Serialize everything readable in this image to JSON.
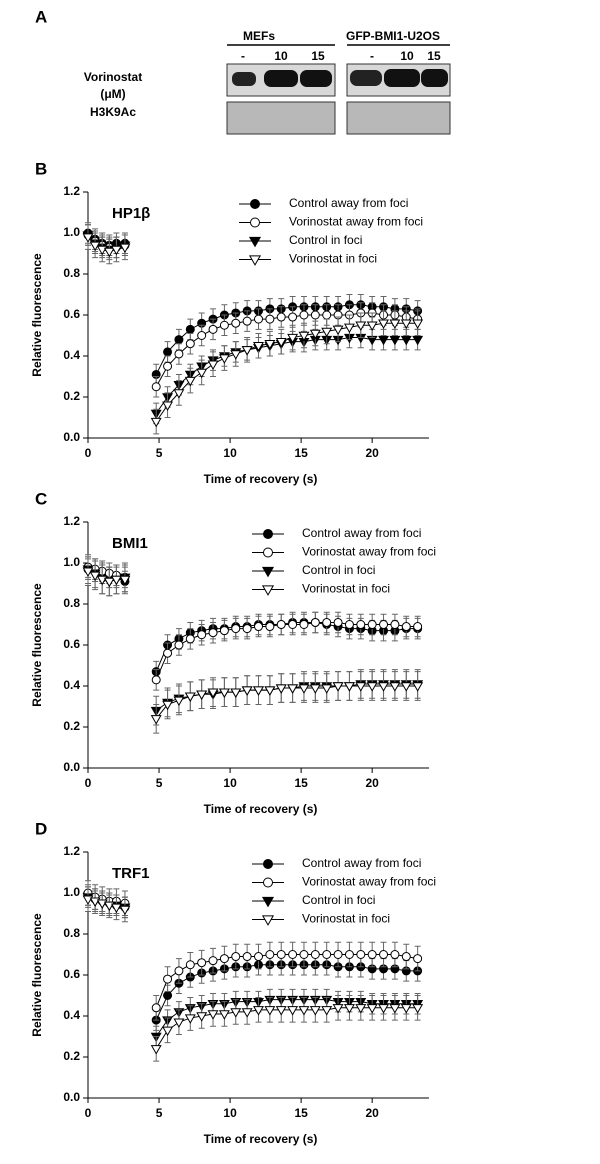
{
  "blot": {
    "panel_label": "A",
    "groups": [
      "MEFs",
      "GFP-BMI1-U2OS"
    ],
    "lanes": [
      "-",
      "10",
      "15",
      "-",
      "10",
      "15"
    ],
    "row_labels": [
      "Vorinostat",
      "(μM)",
      "H3K9Ac"
    ]
  },
  "chart_data": [
    {
      "type": "line",
      "panel_label": "B",
      "title": "HP1β",
      "xlabel": "Time of recovery (s)",
      "ylabel": "Relative fluorescence",
      "x": [
        0,
        0.5,
        1,
        1.5,
        2,
        2.6,
        4.8,
        5.6,
        6.4,
        7.2,
        8,
        8.8,
        9.6,
        10.4,
        11.2,
        12,
        12.8,
        13.6,
        14.4,
        15.2,
        16,
        16.8,
        17.6,
        18.4,
        19.2,
        20,
        20.8,
        21.6,
        22.4,
        23.2
      ],
      "xlim": [
        0,
        24
      ],
      "xticks": [
        0,
        5,
        10,
        15,
        20
      ],
      "ylim": [
        0,
        1.2
      ],
      "yticks": [
        {
          "value": 0,
          "label": "0.0"
        },
        0.2,
        0.4,
        0.6,
        0.8,
        {
          "value": 1,
          "label": "1.0"
        },
        1.2
      ],
      "series": [
        {
          "name": "Control away from foci",
          "color": "#000000",
          "marker": "circle",
          "filled": true,
          "error": 0.05,
          "values": [
            1.0,
            0.97,
            0.95,
            0.94,
            0.95,
            0.95,
            0.31,
            0.42,
            0.48,
            0.53,
            0.56,
            0.58,
            0.6,
            0.61,
            0.62,
            0.62,
            0.63,
            0.63,
            0.64,
            0.64,
            0.64,
            0.64,
            0.64,
            0.65,
            0.65,
            0.64,
            0.64,
            0.63,
            0.63,
            0.62
          ]
        },
        {
          "name": "Vorinostat away from foci",
          "color": "#000000",
          "marker": "circle",
          "filled": false,
          "error": 0.05,
          "values": [
            0.99,
            0.96,
            0.94,
            0.93,
            0.93,
            0.94,
            0.25,
            0.35,
            0.41,
            0.46,
            0.5,
            0.53,
            0.55,
            0.56,
            0.57,
            0.58,
            0.58,
            0.59,
            0.59,
            0.6,
            0.6,
            0.6,
            0.6,
            0.6,
            0.61,
            0.61,
            0.6,
            0.6,
            0.59,
            0.58
          ]
        },
        {
          "name": "Control in foci",
          "color": "#000000",
          "marker": "triangle",
          "filled": true,
          "error": 0.05,
          "values": [
            0.99,
            0.95,
            0.93,
            0.92,
            0.93,
            0.94,
            0.12,
            0.2,
            0.26,
            0.31,
            0.35,
            0.38,
            0.4,
            0.42,
            0.43,
            0.44,
            0.45,
            0.46,
            0.47,
            0.47,
            0.48,
            0.48,
            0.48,
            0.49,
            0.49,
            0.48,
            0.48,
            0.48,
            0.48,
            0.48
          ]
        },
        {
          "name": "Vorinostat in foci",
          "color": "#000000",
          "marker": "triangle",
          "filled": false,
          "error": 0.06,
          "values": [
            0.98,
            0.94,
            0.92,
            0.91,
            0.92,
            0.93,
            0.08,
            0.16,
            0.22,
            0.28,
            0.32,
            0.36,
            0.39,
            0.41,
            0.43,
            0.45,
            0.46,
            0.47,
            0.49,
            0.5,
            0.51,
            0.52,
            0.53,
            0.54,
            0.55,
            0.55,
            0.56,
            0.56,
            0.56,
            0.56
          ]
        }
      ]
    },
    {
      "type": "line",
      "panel_label": "C",
      "title": "BMI1",
      "xlabel": "Time of recovery (s)",
      "ylabel": "Relative fluorescence",
      "x": [
        0,
        0.5,
        1,
        1.5,
        2,
        2.6,
        4.8,
        5.6,
        6.4,
        7.2,
        8,
        8.8,
        9.6,
        10.4,
        11.2,
        12,
        12.8,
        13.6,
        14.4,
        15.2,
        16,
        16.8,
        17.6,
        18.4,
        19.2,
        20,
        20.8,
        21.6,
        22.4,
        23.2
      ],
      "xlim": [
        0,
        24
      ],
      "xticks": [
        0,
        5,
        10,
        15,
        20
      ],
      "ylim": [
        0,
        1.2
      ],
      "yticks": [
        {
          "value": 0,
          "label": "0.0"
        },
        0.2,
        0.4,
        0.6,
        0.8,
        {
          "value": 1,
          "label": "1.0"
        },
        1.2
      ],
      "series": [
        {
          "name": "Control away from foci",
          "color": "#000000",
          "marker": "circle",
          "filled": true,
          "error": 0.05,
          "values": [
            0.97,
            0.96,
            0.95,
            0.93,
            0.93,
            0.91,
            0.47,
            0.6,
            0.63,
            0.66,
            0.67,
            0.68,
            0.68,
            0.69,
            0.69,
            0.7,
            0.7,
            0.7,
            0.71,
            0.71,
            0.71,
            0.7,
            0.69,
            0.68,
            0.68,
            0.67,
            0.67,
            0.67,
            0.68,
            0.68
          ]
        },
        {
          "name": "Vorinostat away from foci",
          "color": "#000000",
          "marker": "circle",
          "filled": false,
          "error": 0.05,
          "values": [
            0.98,
            0.97,
            0.96,
            0.95,
            0.94,
            0.93,
            0.43,
            0.56,
            0.6,
            0.63,
            0.65,
            0.66,
            0.67,
            0.68,
            0.68,
            0.69,
            0.69,
            0.7,
            0.7,
            0.7,
            0.71,
            0.71,
            0.71,
            0.7,
            0.7,
            0.7,
            0.7,
            0.7,
            0.69,
            0.69
          ]
        },
        {
          "name": "Control in foci",
          "color": "#000000",
          "marker": "triangle",
          "filled": true,
          "error": 0.07,
          "values": [
            0.97,
            0.95,
            0.92,
            0.91,
            0.92,
            0.93,
            0.28,
            0.32,
            0.34,
            0.35,
            0.36,
            0.36,
            0.37,
            0.37,
            0.38,
            0.38,
            0.38,
            0.39,
            0.39,
            0.4,
            0.4,
            0.4,
            0.4,
            0.4,
            0.41,
            0.41,
            0.41,
            0.41,
            0.41,
            0.41
          ]
        },
        {
          "name": "Vorinostat in foci",
          "color": "#000000",
          "marker": "triangle",
          "filled": false,
          "error": 0.07,
          "values": [
            0.96,
            0.94,
            0.92,
            0.91,
            0.92,
            0.92,
            0.24,
            0.31,
            0.33,
            0.35,
            0.36,
            0.37,
            0.37,
            0.37,
            0.38,
            0.38,
            0.38,
            0.39,
            0.39,
            0.39,
            0.39,
            0.39,
            0.4,
            0.4,
            0.4,
            0.4,
            0.4,
            0.4,
            0.4,
            0.4
          ]
        }
      ]
    },
    {
      "type": "line",
      "panel_label": "D",
      "title": "TRF1",
      "xlabel": "Time of recovery (s)",
      "ylabel": "Relative fluorescence",
      "x": [
        0,
        0.5,
        1,
        1.5,
        2,
        2.6,
        4.8,
        5.6,
        6.4,
        7.2,
        8,
        8.8,
        9.6,
        10.4,
        11.2,
        12,
        12.8,
        13.6,
        14.4,
        15.2,
        16,
        16.8,
        17.6,
        18.4,
        19.2,
        20,
        20.8,
        21.6,
        22.4,
        23.2
      ],
      "xlim": [
        0,
        24
      ],
      "xticks": [
        0,
        5,
        10,
        15,
        20
      ],
      "ylim": [
        0,
        1.2
      ],
      "yticks": [
        {
          "value": 0,
          "label": "0.0"
        },
        0.2,
        0.4,
        0.6,
        0.8,
        {
          "value": 1,
          "label": "1.0"
        },
        1.2
      ],
      "series": [
        {
          "name": "Control away from foci",
          "color": "#000000",
          "marker": "circle",
          "filled": true,
          "error": 0.05,
          "values": [
            0.99,
            0.97,
            0.96,
            0.95,
            0.94,
            0.93,
            0.38,
            0.5,
            0.56,
            0.59,
            0.61,
            0.62,
            0.63,
            0.64,
            0.64,
            0.65,
            0.65,
            0.65,
            0.65,
            0.65,
            0.65,
            0.65,
            0.64,
            0.64,
            0.64,
            0.63,
            0.63,
            0.63,
            0.62,
            0.62
          ]
        },
        {
          "name": "Vorinostat away from foci",
          "color": "#000000",
          "marker": "circle",
          "filled": false,
          "error": 0.06,
          "values": [
            1.0,
            0.98,
            0.97,
            0.96,
            0.96,
            0.95,
            0.44,
            0.58,
            0.62,
            0.65,
            0.66,
            0.67,
            0.68,
            0.69,
            0.69,
            0.69,
            0.7,
            0.7,
            0.7,
            0.7,
            0.7,
            0.7,
            0.7,
            0.7,
            0.7,
            0.7,
            0.7,
            0.7,
            0.69,
            0.68
          ]
        },
        {
          "name": "Control in foci",
          "color": "#000000",
          "marker": "triangle",
          "filled": true,
          "error": 0.05,
          "values": [
            0.98,
            0.96,
            0.95,
            0.94,
            0.94,
            0.93,
            0.3,
            0.38,
            0.42,
            0.44,
            0.45,
            0.46,
            0.46,
            0.47,
            0.47,
            0.47,
            0.48,
            0.48,
            0.48,
            0.48,
            0.48,
            0.48,
            0.47,
            0.47,
            0.47,
            0.46,
            0.46,
            0.46,
            0.46,
            0.46
          ]
        },
        {
          "name": "Vorinostat in foci",
          "color": "#000000",
          "marker": "triangle",
          "filled": false,
          "error": 0.06,
          "values": [
            0.97,
            0.96,
            0.95,
            0.94,
            0.93,
            0.92,
            0.24,
            0.33,
            0.37,
            0.39,
            0.4,
            0.41,
            0.41,
            0.42,
            0.42,
            0.43,
            0.43,
            0.43,
            0.43,
            0.43,
            0.43,
            0.43,
            0.44,
            0.44,
            0.44,
            0.44,
            0.44,
            0.44,
            0.44,
            0.44
          ]
        }
      ]
    }
  ]
}
